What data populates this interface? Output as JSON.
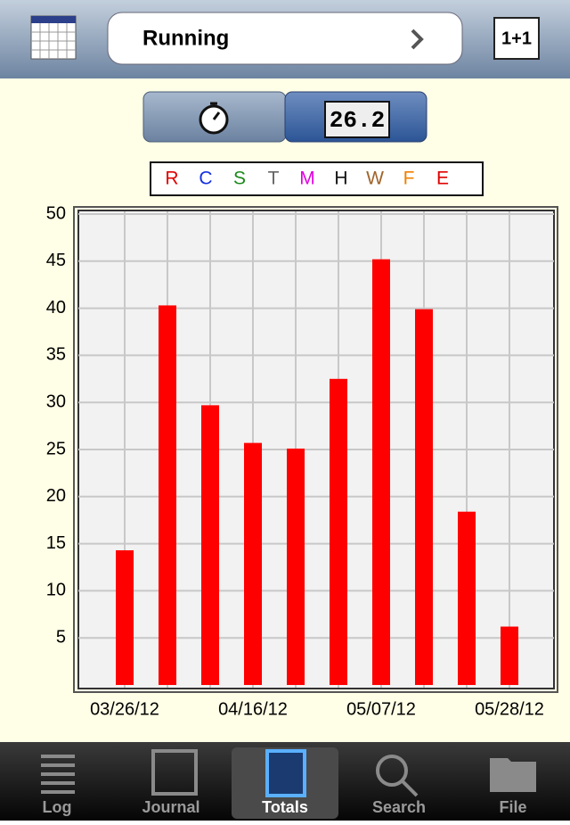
{
  "header": {
    "title": "Running",
    "right_button": "1+1"
  },
  "toggle": {
    "display": "26.2"
  },
  "filters": [
    {
      "label": "R",
      "color": "#e00000"
    },
    {
      "label": "C",
      "color": "#1530e0"
    },
    {
      "label": "S",
      "color": "#1a8a1a"
    },
    {
      "label": "T",
      "color": "#666666"
    },
    {
      "label": "M",
      "color": "#e000e0"
    },
    {
      "label": "H",
      "color": "#111111"
    },
    {
      "label": "W",
      "color": "#a0642a"
    },
    {
      "label": "F",
      "color": "#f08000"
    },
    {
      "label": "E",
      "color": "#e00000"
    }
  ],
  "chart_data": {
    "type": "bar",
    "categories": [
      "03/26/12",
      null,
      null,
      "04/16/12",
      null,
      null,
      "05/07/12",
      null,
      null,
      "05/28/12"
    ],
    "values": [
      14.3,
      40.3,
      29.7,
      25.7,
      25.1,
      32.5,
      45.2,
      39.9,
      18.4,
      6.2
    ],
    "color": "#ff0000",
    "ylim": [
      0,
      50
    ],
    "yticks": [
      5,
      10,
      15,
      20,
      25,
      30,
      35,
      40,
      45,
      50
    ],
    "grid": true
  },
  "tabs": [
    {
      "label": "Log"
    },
    {
      "label": "Journal"
    },
    {
      "label": "Totals"
    },
    {
      "label": "Search"
    },
    {
      "label": "File"
    }
  ]
}
